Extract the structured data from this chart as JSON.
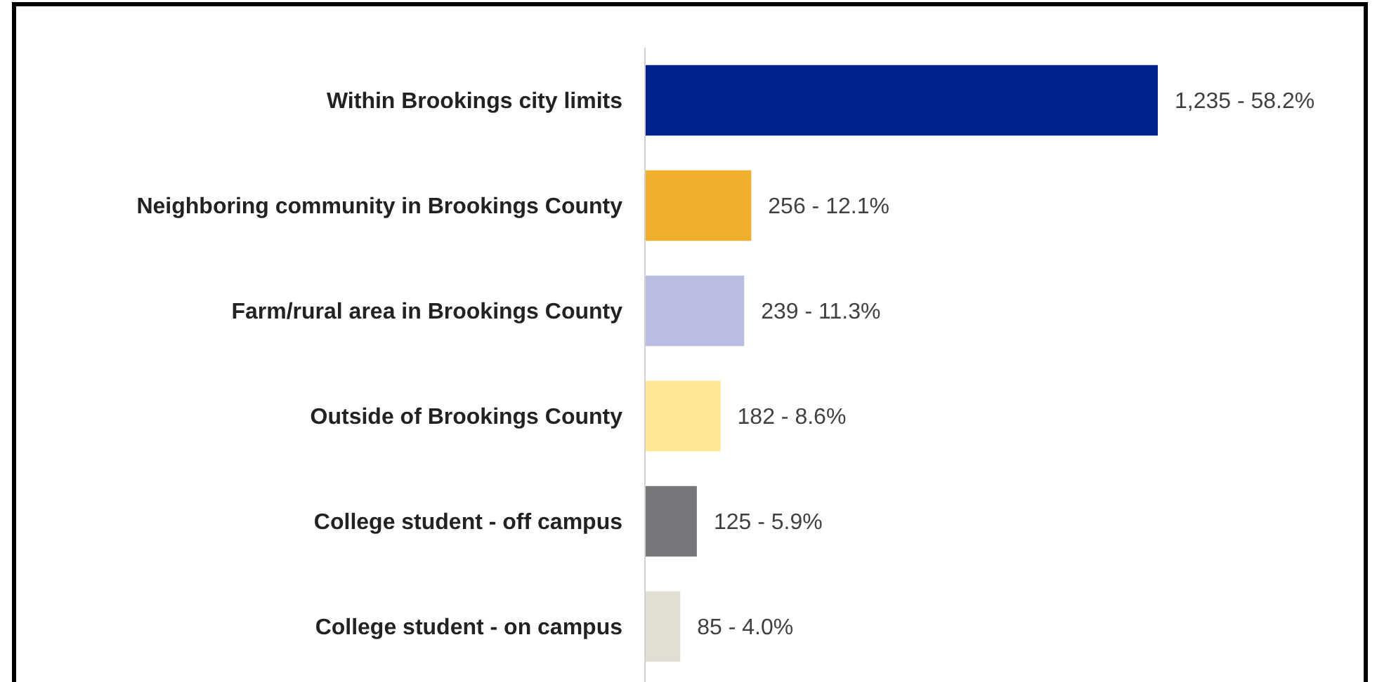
{
  "chart_data": {
    "type": "bar",
    "orientation": "horizontal",
    "categories": [
      "Within Brookings city limits",
      "Neighboring community in Brookings County",
      "Farm/rural area in Brookings County",
      "Outside of Brookings County",
      "College student - off campus",
      "College student - on campus"
    ],
    "values": [
      1235,
      256,
      239,
      182,
      125,
      85
    ],
    "colors": [
      "#00208e",
      "#efb030",
      "#b9bde0",
      "#fee792",
      "#76777b",
      "#e3ded3"
    ],
    "value_labels": [
      "1,235 - 58.2%",
      "256 - 12.1%",
      "239 - 11.3%",
      "182 - 8.6%",
      "125 - 5.9%",
      "85 - 4.0%"
    ]
  }
}
